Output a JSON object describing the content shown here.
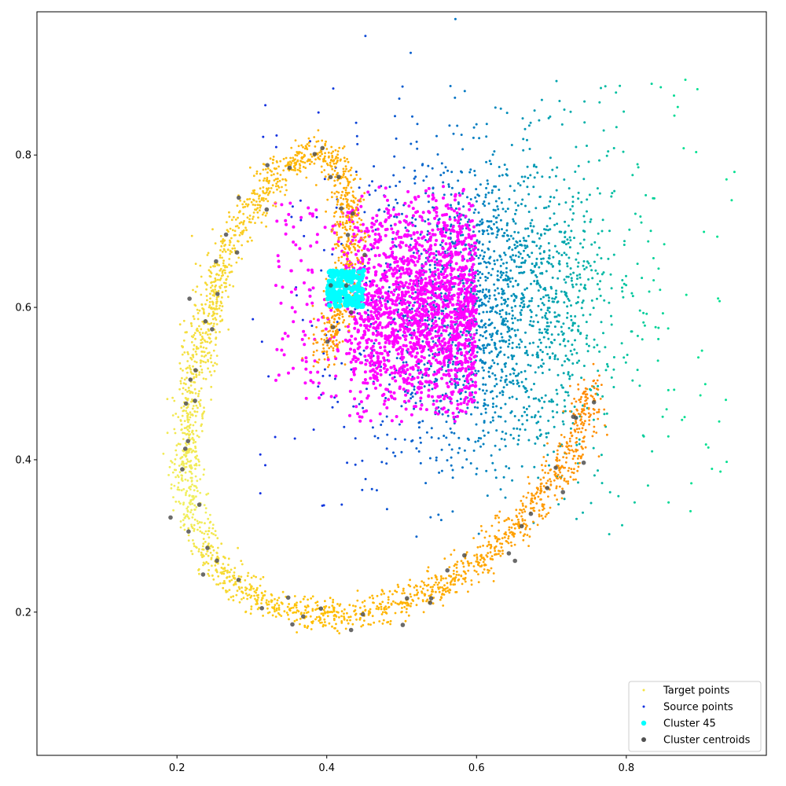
{
  "chart_data": {
    "type": "scatter",
    "title": "",
    "xlabel": "",
    "ylabel": "",
    "xlim": [
      0.013,
      0.987
    ],
    "ylim": [
      0.012,
      0.988
    ],
    "xticks": [
      0.2,
      0.4,
      0.6,
      0.8
    ],
    "yticks": [
      0.2,
      0.4,
      0.6,
      0.8
    ],
    "xtick_labels": [
      "0.2",
      "0.4",
      "0.6",
      "0.8"
    ],
    "ytick_labels": [
      "0.2",
      "0.4",
      "0.6",
      "0.8"
    ],
    "grid": false,
    "legend_position": "bottom-right",
    "description_of_distribution": {
      "target_points": "ring / spiral arc: yellow on the left and top, shading to orange along the bottom-right and the inner loop near x=0.42",
      "source_points": "cloud centered near (0.62, 0.6), colored by a gradient from blue (left) to teal-green (right)",
      "cluster_45": "tight cyan patch at x 0.40-0.45, y 0.60-0.65",
      "magenta_region": "dense source points at x 0.42-0.60, y 0.45-0.76"
    },
    "series": [
      {
        "name": "Target points",
        "color": "#f5e342",
        "marker_size": 2,
        "curve_points": [
          [
            0.395,
            0.53
          ],
          [
            0.405,
            0.56
          ],
          [
            0.415,
            0.6
          ],
          [
            0.425,
            0.64
          ],
          [
            0.43,
            0.68
          ],
          [
            0.43,
            0.72
          ],
          [
            0.425,
            0.76
          ],
          [
            0.41,
            0.795
          ],
          [
            0.385,
            0.805
          ],
          [
            0.355,
            0.79
          ],
          [
            0.32,
            0.76
          ],
          [
            0.29,
            0.72
          ],
          [
            0.265,
            0.67
          ],
          [
            0.245,
            0.61
          ],
          [
            0.23,
            0.55
          ],
          [
            0.218,
            0.48
          ],
          [
            0.212,
            0.42
          ],
          [
            0.213,
            0.37
          ],
          [
            0.222,
            0.32
          ],
          [
            0.24,
            0.28
          ],
          [
            0.265,
            0.245
          ],
          [
            0.3,
            0.22
          ],
          [
            0.345,
            0.205
          ],
          [
            0.4,
            0.197
          ],
          [
            0.45,
            0.2
          ],
          [
            0.5,
            0.21
          ],
          [
            0.55,
            0.235
          ],
          [
            0.6,
            0.265
          ],
          [
            0.64,
            0.3
          ],
          [
            0.68,
            0.34
          ],
          [
            0.71,
            0.385
          ],
          [
            0.735,
            0.43
          ],
          [
            0.75,
            0.475
          ],
          [
            0.755,
            0.505
          ]
        ],
        "count": 2600,
        "spread": 0.011
      },
      {
        "name": "Source points",
        "color": "#1030e0",
        "marker_size": 2,
        "center": [
          0.62,
          0.6
        ],
        "count": 2200
      },
      {
        "name": "Cluster 45",
        "color": "#00ffff",
        "marker_size": 3,
        "center": [
          0.425,
          0.625
        ],
        "count": 160
      },
      {
        "name": "Cluster centroids",
        "color": "#505050",
        "marker_size": 4,
        "count": 62
      }
    ],
    "magenta_region": {
      "color": "#ff00ff",
      "x_range": [
        0.425,
        0.6
      ],
      "y_range": [
        0.45,
        0.76
      ],
      "count": 1900
    }
  },
  "legend": {
    "items": [
      {
        "label": "Target points",
        "color": "#f5e342",
        "marker": "small"
      },
      {
        "label": "Source points",
        "color": "#1030e0",
        "marker": "small"
      },
      {
        "label": "Cluster 45",
        "color": "#00ffff",
        "marker": "medium"
      },
      {
        "label": "Cluster centroids",
        "color": "#505050",
        "marker": "large"
      }
    ]
  }
}
